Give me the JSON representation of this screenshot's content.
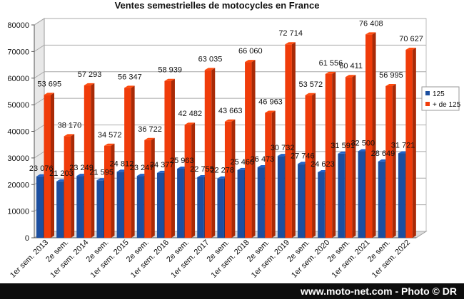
{
  "chart_data": {
    "type": "bar",
    "title": "Ventes semestrielles de motocycles en France",
    "categories": [
      "1er sem. 2013",
      "2e sem.",
      "1er sem. 2014",
      "2e sem.",
      "1er sem. 2015",
      "2e sem.",
      "1er sem. 2016",
      "2e sem.",
      "1er sem. 2017",
      "2e sem.",
      "1er sem. 2018",
      "2e sem.",
      "1er sem. 2019",
      "2e sem.",
      "1er sem. 2020",
      "2e sem.",
      "1er sem. 2021",
      "2e sem.",
      "1er sem. 2022"
    ],
    "series": [
      {
        "name": "125",
        "color": "#1c4fa0",
        "values": [
          23076,
          21203,
          23249,
          21595,
          24812,
          23247,
          24377,
          25963,
          22755,
          22278,
          25460,
          26473,
          30732,
          27746,
          24623,
          31591,
          32500,
          28649,
          31721
        ],
        "labels": [
          "23 076",
          "21 203",
          "23 249",
          "21 595",
          "24 812",
          "23 247",
          "24 377",
          "25 963",
          "22 755",
          "22 278",
          "25 460",
          "26 473",
          "30 732",
          "27 746",
          "24 623",
          "31 591",
          "32 500",
          "28 649",
          "31 721"
        ]
      },
      {
        "name": "+ de 125",
        "color": "#f03c0a",
        "values": [
          53695,
          38170,
          57293,
          34572,
          56347,
          36722,
          58939,
          42482,
          63035,
          43663,
          66060,
          46963,
          72714,
          53572,
          61556,
          60411,
          76408,
          56995,
          70627
        ],
        "labels": [
          "53 695",
          "38 170",
          "57 293",
          "34 572",
          "56 347",
          "36 722",
          "58 939",
          "42 482",
          "63 035",
          "43 663",
          "66 060",
          "46 963",
          "72 714",
          "53 572",
          "61 556",
          "60 411",
          "76 408",
          "56 995",
          "70 627"
        ]
      }
    ],
    "yticks": [
      "0",
      "10000",
      "20000",
      "30000",
      "40000",
      "50000",
      "60000",
      "70000",
      "80000"
    ],
    "ylim": [
      0,
      80000
    ],
    "grid": true,
    "legend": "right"
  },
  "footer": {
    "credit": "www.moto-net.com - Photo © DR"
  }
}
